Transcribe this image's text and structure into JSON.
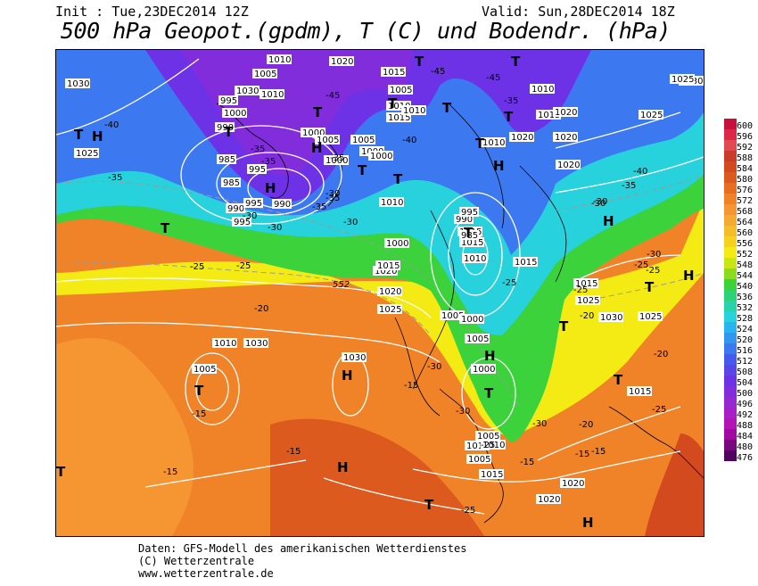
{
  "header": {
    "init": "Init : Tue,23DEC2014 12Z",
    "valid": "Valid: Sun,28DEC2014 18Z",
    "title": "500 hPa Geopot.(gpdm), T (C) und Bodendr. (hPa)"
  },
  "footer": {
    "line1": "Daten: GFS-Modell des amerikanischen Wetterdienstes",
    "line2": "(C) Wetterzentrale",
    "line3": "www.wetterzentrale.de"
  },
  "legend": {
    "levels": [
      "600",
      "596",
      "592",
      "588",
      "584",
      "580",
      "576",
      "572",
      "568",
      "564",
      "560",
      "556",
      "552",
      "548",
      "544",
      "540",
      "536",
      "532",
      "528",
      "524",
      "520",
      "516",
      "512",
      "508",
      "504",
      "500",
      "496",
      "492",
      "488",
      "484",
      "480",
      "476"
    ],
    "colors": [
      "#c8103c",
      "#dc2846",
      "#e04a50",
      "#c83c28",
      "#d24a1e",
      "#dc5a1e",
      "#e66e1e",
      "#f08228",
      "#f59632",
      "#f5aa32",
      "#f5be28",
      "#f5d21e",
      "#f5eb14",
      "#c8e614",
      "#8cdc1e",
      "#3cd23c",
      "#2dd278",
      "#28d2aa",
      "#28d2dc",
      "#28b4f0",
      "#3296f0",
      "#3c78f0",
      "#465af0",
      "#5a46e6",
      "#6e32e6",
      "#822ddc",
      "#9628d2",
      "#aa1ec8",
      "#b414b4",
      "#a00aa0",
      "#78087d",
      "#500560"
    ]
  },
  "map": {
    "pressure_labels": [
      {
        "t": "1030"
      },
      {
        "t": "1025"
      },
      {
        "t": "1010"
      },
      {
        "t": "1020"
      },
      {
        "t": "1015"
      },
      {
        "t": "1005"
      },
      {
        "t": "1010"
      },
      {
        "t": "1030"
      },
      {
        "t": "995"
      },
      {
        "t": "1000"
      },
      {
        "t": "990"
      },
      {
        "t": "985"
      },
      {
        "t": "1000"
      },
      {
        "t": "995"
      },
      {
        "t": "985"
      },
      {
        "t": "990"
      },
      {
        "t": "995"
      },
      {
        "t": "990"
      },
      {
        "t": "995"
      },
      {
        "t": "1005"
      },
      {
        "t": "1000"
      },
      {
        "t": "1005"
      },
      {
        "t": "1010"
      },
      {
        "t": "1000"
      },
      {
        "t": "1015"
      },
      {
        "t": "1005"
      },
      {
        "t": "1010"
      },
      {
        "t": "1000"
      },
      {
        "t": "1010"
      },
      {
        "t": "1000"
      },
      {
        "t": "1020"
      },
      {
        "t": "1015"
      },
      {
        "t": "1025"
      },
      {
        "t": "1030"
      },
      {
        "t": "1010"
      },
      {
        "t": "1005"
      },
      {
        "t": "1030"
      },
      {
        "t": "1005"
      },
      {
        "t": "1010"
      },
      {
        "t": "1015"
      },
      {
        "t": "1010"
      },
      {
        "t": "1020"
      },
      {
        "t": "1015"
      },
      {
        "t": "1020"
      },
      {
        "t": "1010"
      },
      {
        "t": "1020"
      },
      {
        "t": "1025"
      },
      {
        "t": "1030"
      },
      {
        "t": "1025"
      },
      {
        "t": "1020"
      },
      {
        "t": "1015"
      },
      {
        "t": "1015"
      },
      {
        "t": "1020"
      },
      {
        "t": "1000"
      },
      {
        "t": "1005"
      },
      {
        "t": "1000"
      },
      {
        "t": "1005"
      },
      {
        "t": "1025"
      },
      {
        "t": "1015"
      },
      {
        "t": "1010"
      },
      {
        "t": "1020"
      },
      {
        "t": "1015"
      },
      {
        "t": "1030"
      },
      {
        "t": "1025"
      },
      {
        "t": "1020"
      },
      {
        "t": "1005"
      },
      {
        "t": "1010"
      },
      {
        "t": "990"
      },
      {
        "t": "985"
      },
      {
        "t": "995"
      },
      {
        "t": "1015"
      }
    ],
    "temp_labels": [
      {
        "t": "-40"
      },
      {
        "t": "-35"
      },
      {
        "t": "-35"
      },
      {
        "t": "-35"
      },
      {
        "t": "-35"
      },
      {
        "t": "-30"
      },
      {
        "t": "-30"
      },
      {
        "t": "-30"
      },
      {
        "t": "-25"
      },
      {
        "t": "-25"
      },
      {
        "t": "-20"
      },
      {
        "t": "-15"
      },
      {
        "t": "-15"
      },
      {
        "t": "-15"
      },
      {
        "t": "-45"
      },
      {
        "t": "-45"
      },
      {
        "t": "-35"
      },
      {
        "t": "-40"
      },
      {
        "t": "-45"
      },
      {
        "t": "-35"
      },
      {
        "t": "-35"
      },
      {
        "t": "-30"
      },
      {
        "t": "-30"
      },
      {
        "t": "-25"
      },
      {
        "t": "-25"
      },
      {
        "t": "-20"
      },
      {
        "t": "-25"
      },
      {
        "t": "-30"
      },
      {
        "t": "-30"
      },
      {
        "t": "-25"
      },
      {
        "t": "-15"
      },
      {
        "t": "-15"
      },
      {
        "t": "-20"
      },
      {
        "t": "-25"
      },
      {
        "t": "-25"
      },
      {
        "t": "-30"
      },
      {
        "t": "-25"
      },
      {
        "t": "-15"
      },
      {
        "t": "-40"
      },
      {
        "t": "-35"
      },
      {
        "t": "-30"
      },
      {
        "t": "-30"
      },
      {
        "t": "-20"
      },
      {
        "t": "-15"
      }
    ],
    "geopot_label": "552",
    "h_symbol": "H",
    "t_symbol": "T"
  }
}
